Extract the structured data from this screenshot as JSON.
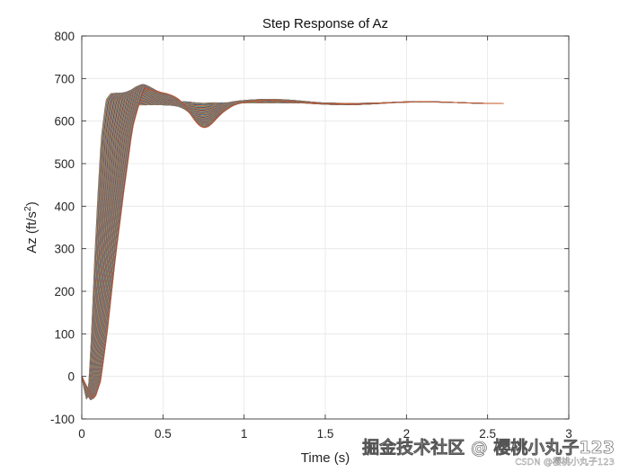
{
  "chart_data": {
    "type": "line",
    "title": "Step Response of Az",
    "xlabel": "Time (s)",
    "ylabel": "Az (ft/s",
    "ylabel_superscript": "2",
    "ylabel_suffix": ")",
    "xlim": [
      0,
      3
    ],
    "ylim": [
      -100,
      800
    ],
    "xticks": [
      0,
      0.5,
      1,
      1.5,
      2,
      2.5,
      3
    ],
    "xtick_labels": [
      "0",
      "0.5",
      "1",
      "1.5",
      "2",
      "2.5",
      "3"
    ],
    "yticks": [
      -100,
      0,
      100,
      200,
      300,
      400,
      500,
      600,
      700,
      800
    ],
    "ytick_labels": [
      "-100",
      "0",
      "100",
      "200",
      "300",
      "400",
      "500",
      "600",
      "700",
      "800"
    ],
    "grid": true,
    "series_count": 100,
    "steady_state": 643,
    "family": {
      "description": "family of step responses with time scale varying between series",
      "base_response": {
        "t": [
          0,
          0.015,
          0.03,
          0.045,
          0.06,
          0.08,
          0.1,
          0.12,
          0.15,
          0.18,
          0.2,
          0.23,
          0.27,
          0.3,
          0.35,
          0.4,
          0.45,
          0.5,
          0.55,
          0.6,
          0.65,
          0.7,
          0.75,
          0.8,
          0.85,
          0.9,
          0.95,
          1.0
        ],
        "y": [
          0,
          -30,
          -55,
          -10,
          100,
          280,
          430,
          560,
          650,
          665,
          665,
          660,
          650,
          645,
          638,
          638,
          640,
          642,
          644,
          646,
          645,
          643,
          642,
          643,
          643,
          643,
          643,
          643
        ]
      },
      "first_series_time_scale": 1,
      "last_series_time_scale": 2.6,
      "t_end_first": 1.3,
      "t_end_last": 2.6
    },
    "series_colors": [
      "#0072BD",
      "#D95319",
      "#EDB120",
      "#7E2F8E",
      "#77AC30",
      "#4DBEEE",
      "#A2142F"
    ]
  },
  "watermark": {
    "main": "掘金技术社区 @ 樱桃小丸子123",
    "sub": "CSDN @樱桃小丸子123"
  }
}
